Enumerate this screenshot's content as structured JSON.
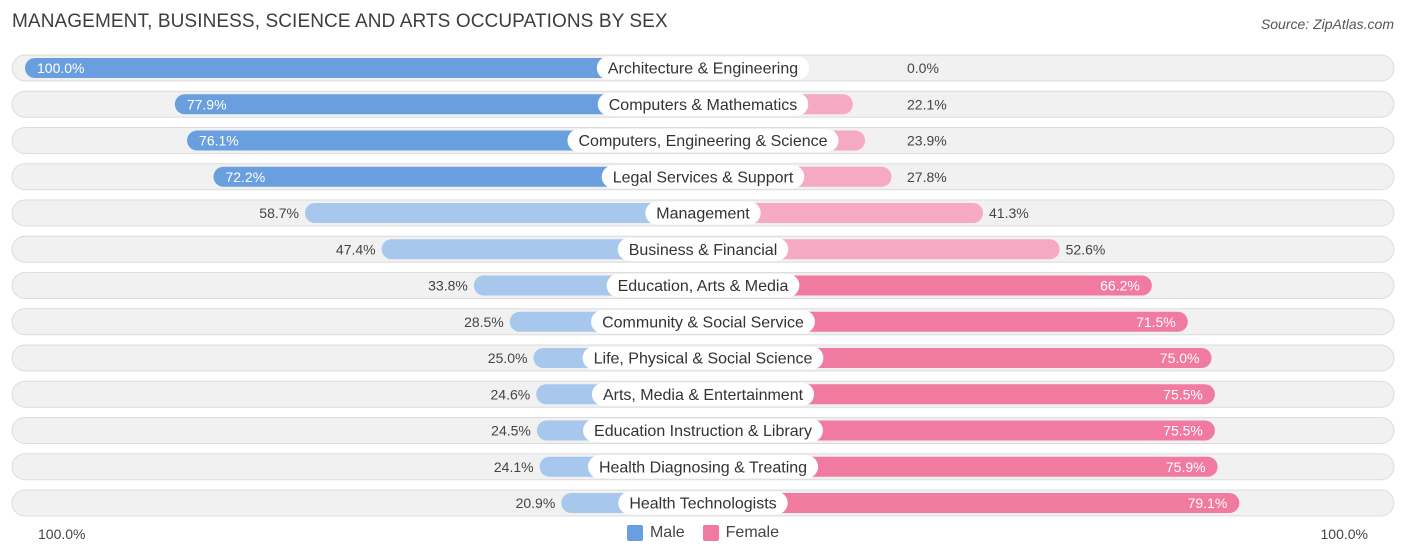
{
  "title": "MANAGEMENT, BUSINESS, SCIENCE AND ARTS OCCUPATIONS BY SEX",
  "source": "Source: ZipAtlas.com",
  "axis": {
    "left_label": "100.0%",
    "right_label": "100.0%"
  },
  "legend": [
    {
      "name": "Male",
      "color": "#6a9fdf"
    },
    {
      "name": "Female",
      "color": "#f07aa0"
    }
  ],
  "colors": {
    "male_strong": "#6a9fdf",
    "male_light": "#a7c7ec",
    "female_strong": "#f07aa0",
    "female_light": "#f6a9c3",
    "row_bg": "#f1f1f1",
    "row_border": "#dcdcdc"
  },
  "chart_data": {
    "type": "bar",
    "orientation": "horizontal-diverging",
    "title": "MANAGEMENT, BUSINESS, SCIENCE AND ARTS OCCUPATIONS BY SEX",
    "xlim": [
      -100,
      100
    ],
    "categories": [
      "Architecture & Engineering",
      "Computers & Mathematics",
      "Computers, Engineering & Science",
      "Legal Services & Support",
      "Management",
      "Business & Financial",
      "Education, Arts & Media",
      "Community & Social Service",
      "Life, Physical & Social Science",
      "Arts, Media & Entertainment",
      "Education Instruction & Library",
      "Health Diagnosing & Treating",
      "Health Technologists"
    ],
    "series": [
      {
        "name": "Male",
        "values": [
          100.0,
          77.9,
          76.1,
          72.2,
          58.7,
          47.4,
          33.8,
          28.5,
          25.0,
          24.6,
          24.5,
          24.1,
          20.9
        ],
        "labels": [
          "100.0%",
          "77.9%",
          "76.1%",
          "72.2%",
          "58.7%",
          "47.4%",
          "33.8%",
          "28.5%",
          "25.0%",
          "24.6%",
          "24.5%",
          "24.1%",
          "20.9%"
        ]
      },
      {
        "name": "Female",
        "values": [
          0.0,
          22.1,
          23.9,
          27.8,
          41.3,
          52.6,
          66.2,
          71.5,
          75.0,
          75.5,
          75.5,
          75.9,
          79.1
        ],
        "labels": [
          "0.0%",
          "22.1%",
          "23.9%",
          "27.8%",
          "41.3%",
          "52.6%",
          "66.2%",
          "71.5%",
          "75.0%",
          "75.5%",
          "75.5%",
          "75.9%",
          "79.1%"
        ]
      }
    ]
  }
}
